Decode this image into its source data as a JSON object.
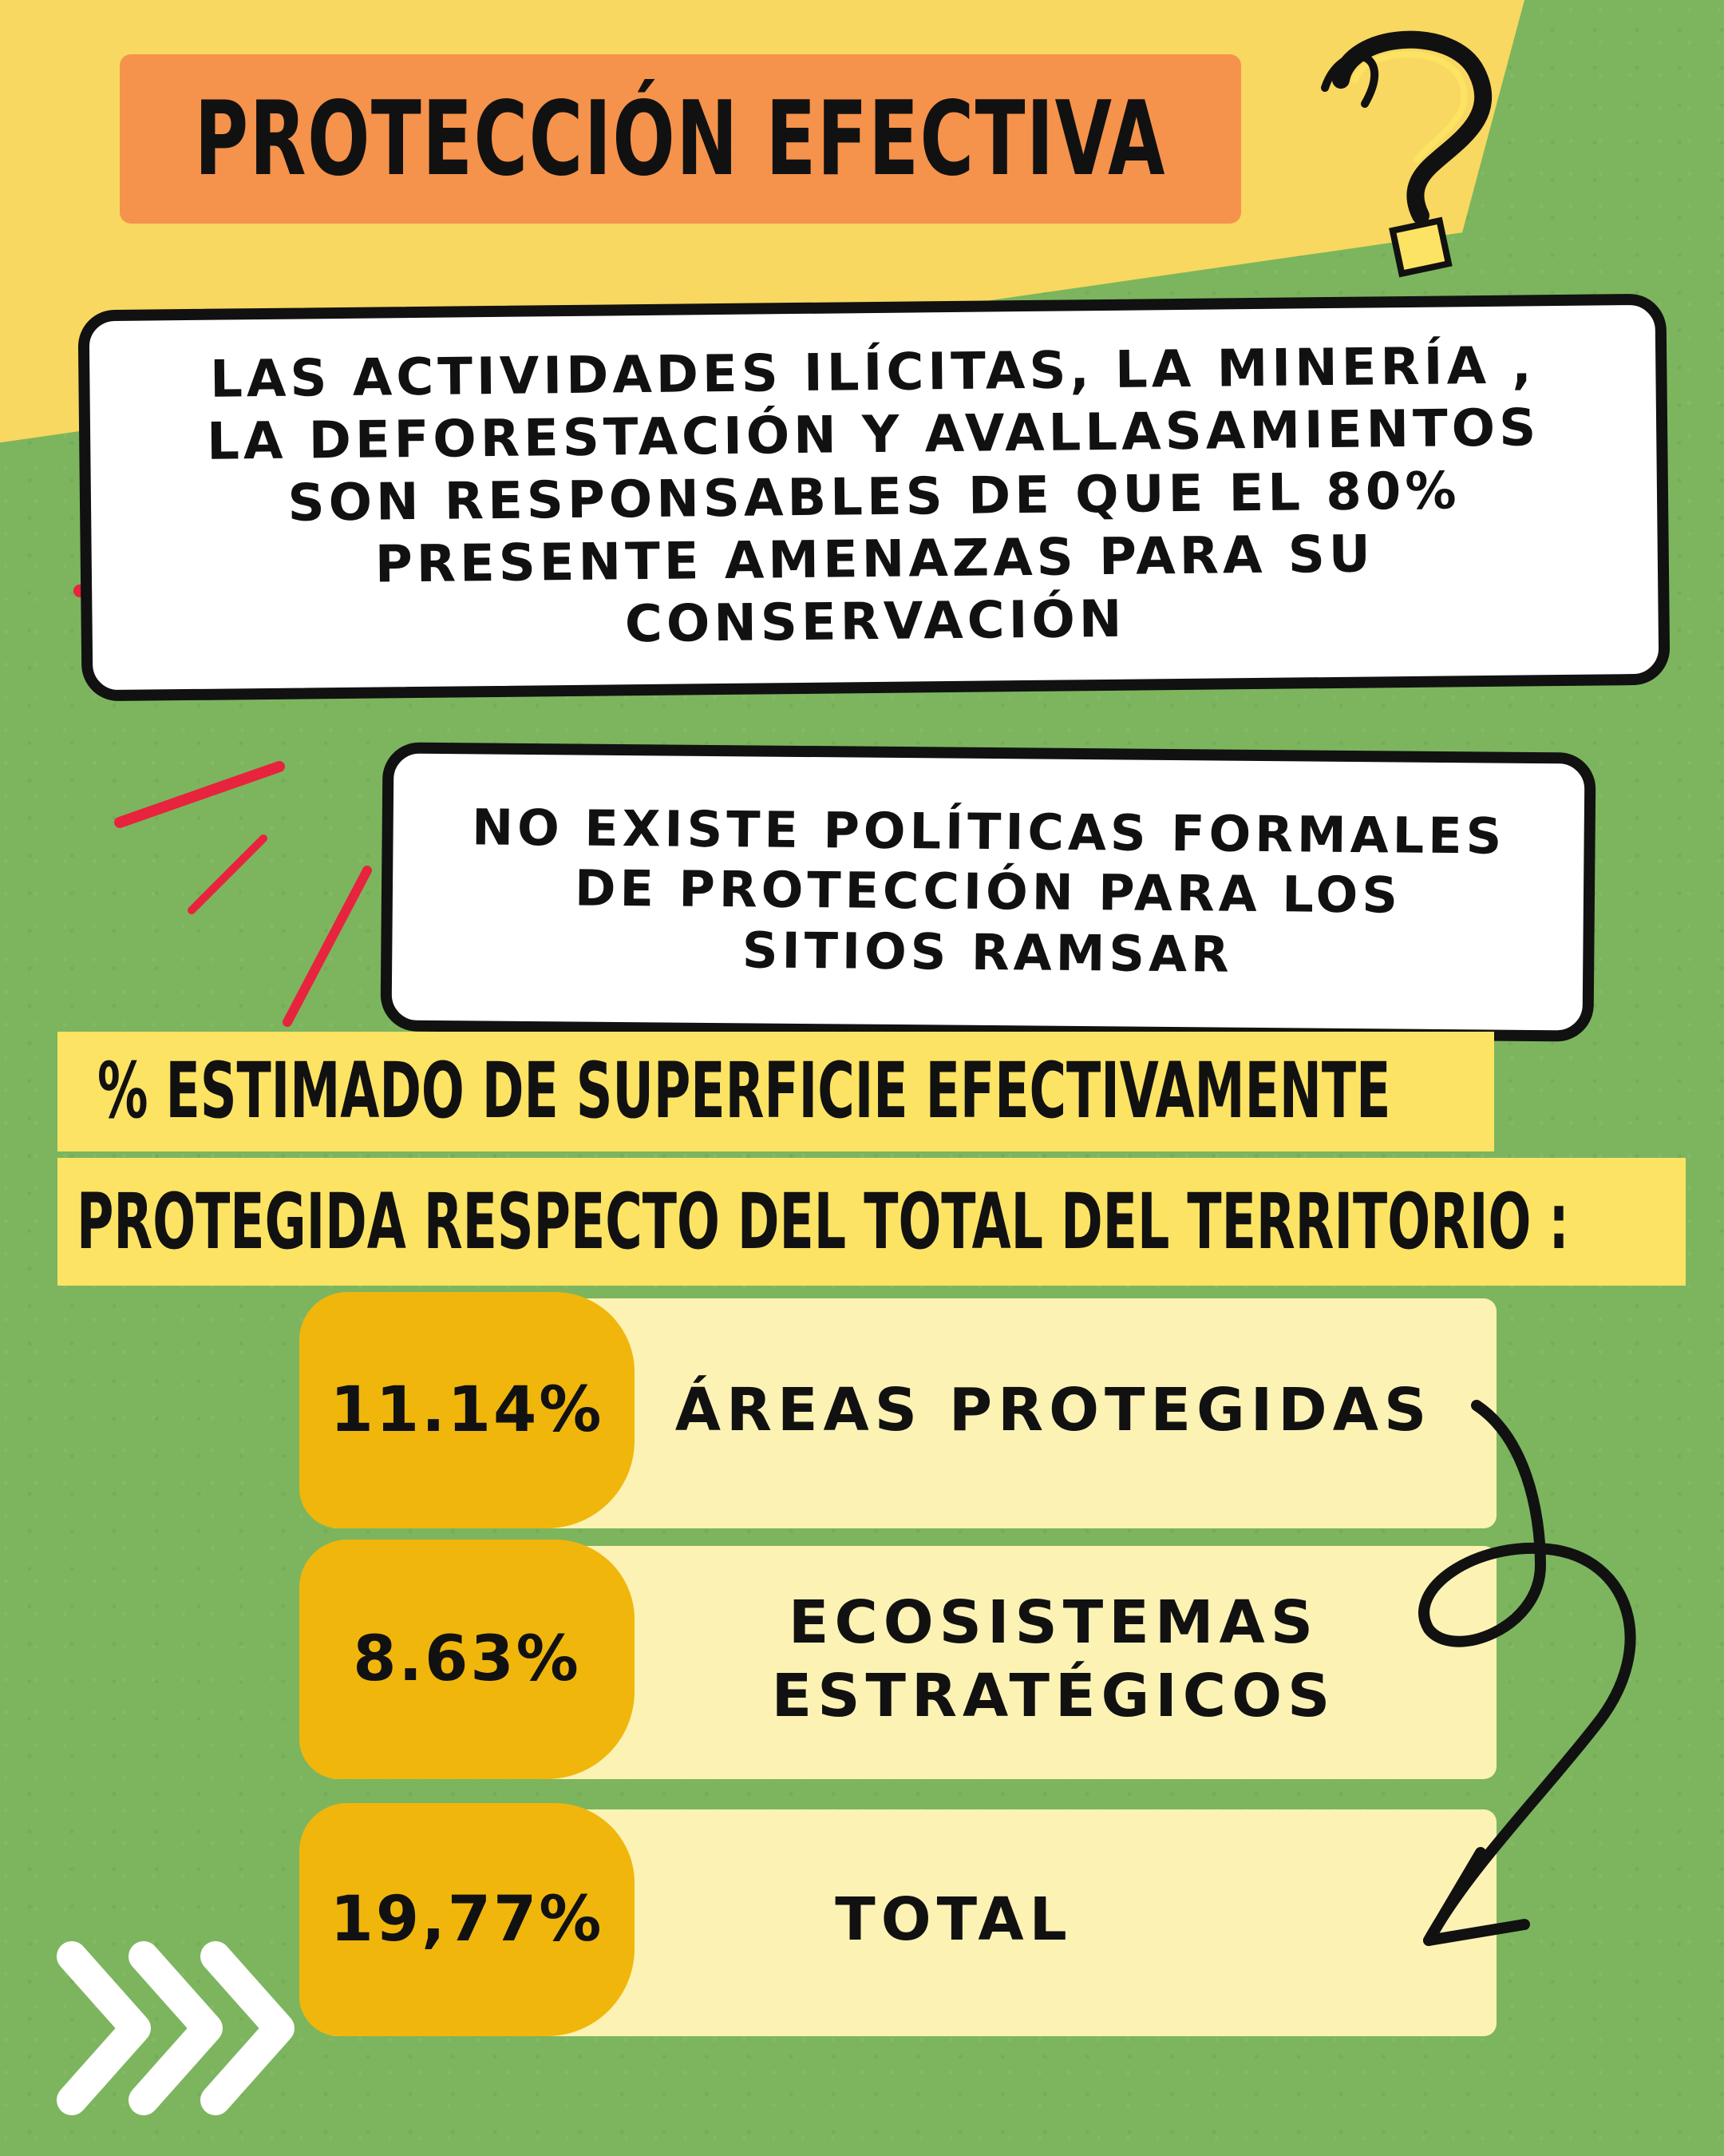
{
  "title": "PROTECCIÓN EFECTIVA",
  "statement_1": [
    "LAS ACTIVIDADES ILÍCITAS, LA MINERÍA ,",
    "LA DEFORESTACIÓN Y AVALLASAMIENTOS",
    "SON RESPONSABLES DE QUE EL 80%",
    "PRESENTE AMENAZAS PARA SU",
    "CONSERVACIÓN"
  ],
  "statement_2": [
    "NO EXISTE POLÍTICAS  FORMALES",
    "DE PROTECCIÓN  PARA LOS",
    "SITIOS RAMSAR"
  ],
  "heading": {
    "line1": "% ESTIMADO DE SUPERFICIE EFECTIVAMENTE",
    "line2": "PROTEGIDA RESPECTO DEL TOTAL DEL TERRITORIO :"
  },
  "stats": [
    {
      "value": "11.14%",
      "label": [
        "ÁREAS PROTEGIDAS"
      ]
    },
    {
      "value": "8.63%",
      "label": [
        "ECOSISTEMAS",
        "ESTRATÉGICOS"
      ]
    },
    {
      "value": "19,77%",
      "label": [
        "TOTAL"
      ]
    }
  ],
  "icons": {
    "question": "question-mark-icon",
    "arrow": "curved-arrow-icon",
    "chevrons": "chevron-right-icon",
    "accent_strokes": "red-stroke-icon"
  },
  "colors": {
    "background": "#7cb55e",
    "band": "#f8d860",
    "title_box": "#f5924b",
    "highlight": "#fce364",
    "pct": "#f0b60c",
    "row_band": "#fbf2b4",
    "accent": "#e8233e"
  }
}
